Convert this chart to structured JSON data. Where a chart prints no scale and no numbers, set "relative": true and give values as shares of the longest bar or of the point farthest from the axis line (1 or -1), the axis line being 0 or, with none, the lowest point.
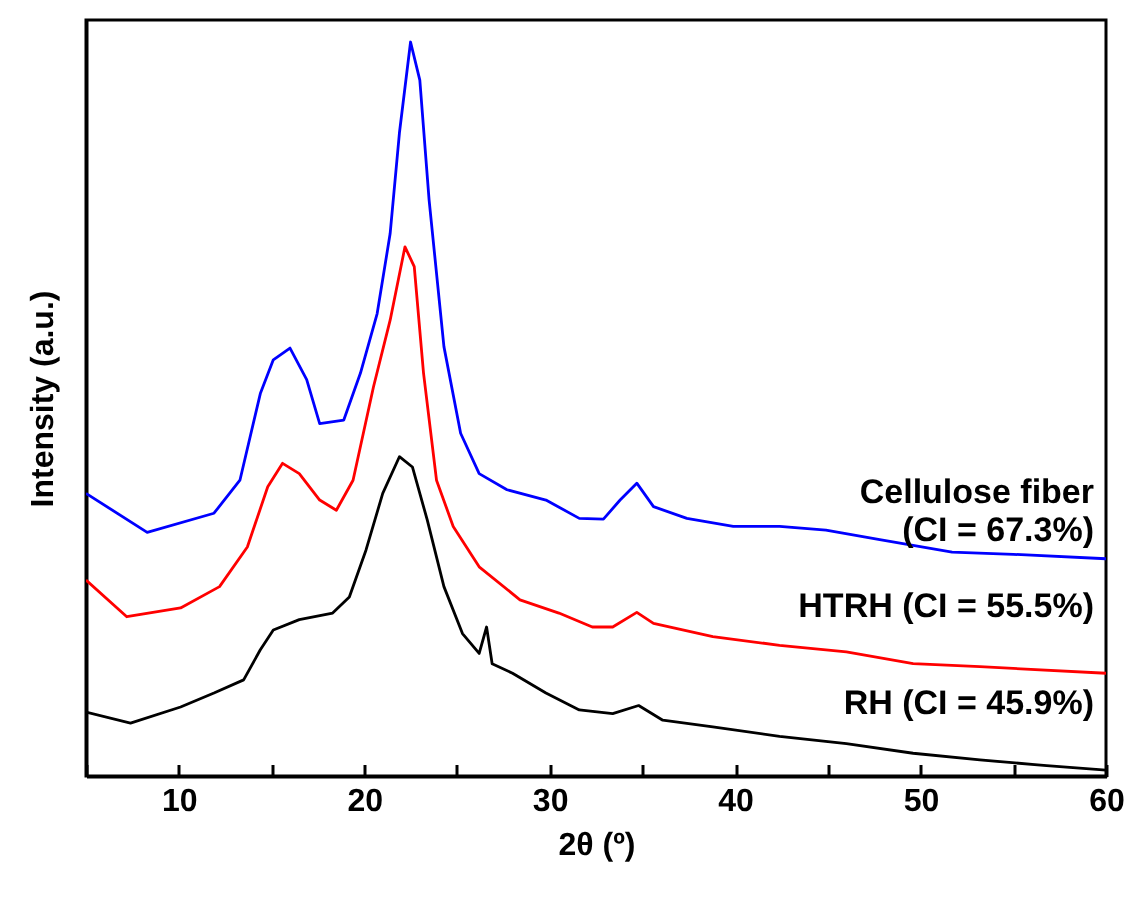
{
  "chart_data": {
    "type": "line",
    "xlabel": "2θ (º)",
    "ylabel": "Intensity (a.u.)",
    "relative": true,
    "xlim": [
      5,
      60
    ],
    "xticks": [
      {
        "value": 5,
        "label": null
      },
      10,
      {
        "value": 15,
        "label": null
      },
      20,
      {
        "value": 25,
        "label": null
      },
      30,
      {
        "value": 35,
        "label": null
      },
      40,
      {
        "value": 45,
        "label": null
      },
      50,
      {
        "value": 55,
        "label": null
      },
      60
    ],
    "legend": false,
    "grid": false,
    "marker": "none",
    "line_style": "solid",
    "series": [
      {
        "name": "Cellulose fiber\n(CI = 67.3%)",
        "color": "#0000ff",
        "x": [
          5,
          8.3,
          11.9,
          13.3,
          14.4,
          15.1,
          16.0,
          16.9,
          17.6,
          18.9,
          19.8,
          20.7,
          21.4,
          21.9,
          22.5,
          23.0,
          23.5,
          24.3,
          25.2,
          26.2,
          27.7,
          29.8,
          31.6,
          32.9,
          33.8,
          34.7,
          35.6,
          37.4,
          39.9,
          42.4,
          44.9,
          47.8,
          51.7,
          55.0,
          60
        ],
        "values": [
          0.385,
          0.332,
          0.358,
          0.403,
          0.521,
          0.567,
          0.583,
          0.54,
          0.48,
          0.485,
          0.549,
          0.63,
          0.739,
          0.876,
          1.0,
          0.948,
          0.785,
          0.585,
          0.467,
          0.412,
          0.39,
          0.376,
          0.351,
          0.35,
          0.376,
          0.399,
          0.367,
          0.351,
          0.34,
          0.34,
          0.335,
          0.322,
          0.305,
          0.302,
          0.296
        ]
      },
      {
        "name": "HTRH (CI = 55.5%)",
        "color": "#ff0000",
        "x": [
          5,
          7.2,
          10.1,
          12.2,
          13.7,
          14.8,
          15.6,
          16.5,
          17.6,
          18.5,
          19.4,
          20.5,
          21.4,
          22.2,
          22.7,
          23.2,
          23.9,
          24.8,
          26.2,
          28.4,
          30.5,
          32.3,
          33.4,
          34.7,
          35.6,
          38.8,
          42.4,
          46.0,
          49.6,
          53.2,
          60
        ],
        "values": [
          0.267,
          0.217,
          0.229,
          0.258,
          0.312,
          0.394,
          0.426,
          0.412,
          0.376,
          0.362,
          0.403,
          0.53,
          0.621,
          0.721,
          0.694,
          0.549,
          0.403,
          0.34,
          0.285,
          0.24,
          0.222,
          0.203,
          0.203,
          0.223,
          0.208,
          0.19,
          0.178,
          0.169,
          0.153,
          0.149,
          0.14
        ]
      },
      {
        "name": "RH (CI = 45.9%)",
        "color": "#000000",
        "x": [
          5,
          7.4,
          10.1,
          11.9,
          13.5,
          14.4,
          15.1,
          16.5,
          18.3,
          19.2,
          20.1,
          21.0,
          21.9,
          22.6,
          23.4,
          24.3,
          25.3,
          26.2,
          26.6,
          26.9,
          28.0,
          29.8,
          31.6,
          33.4,
          34.8,
          36.1,
          38.8,
          42.4,
          46.0,
          49.6,
          53.2,
          56.8,
          60
        ],
        "values": [
          0.087,
          0.072,
          0.094,
          0.113,
          0.131,
          0.172,
          0.199,
          0.213,
          0.222,
          0.244,
          0.308,
          0.385,
          0.435,
          0.421,
          0.349,
          0.258,
          0.194,
          0.167,
          0.203,
          0.153,
          0.14,
          0.113,
          0.09,
          0.085,
          0.096,
          0.076,
          0.067,
          0.054,
          0.044,
          0.031,
          0.022,
          0.014,
          0.008
        ]
      }
    ]
  }
}
